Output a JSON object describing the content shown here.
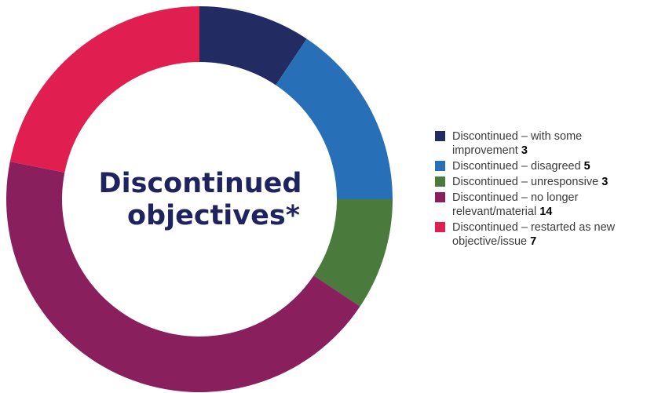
{
  "chart_data": {
    "type": "pie",
    "title": "Discontinued objectives*",
    "title_lines": [
      "Discontinued",
      "objectives*"
    ],
    "legend_position": "right",
    "slices": [
      {
        "label": "Discontinued – with some improvement",
        "value": 3,
        "color": "#232b63"
      },
      {
        "label": "Discontinued – disagreed",
        "value": 5,
        "color": "#2770b7"
      },
      {
        "label": "Discontinued – unresponsive",
        "value": 3,
        "color": "#4a7a3c"
      },
      {
        "label": "Discontinued – no longer relevant/material",
        "value": 14,
        "color": "#8a1f5e"
      },
      {
        "label": "Discontinued – restarted as new objective/issue",
        "value": 7,
        "color": "#e01e4f"
      }
    ]
  }
}
